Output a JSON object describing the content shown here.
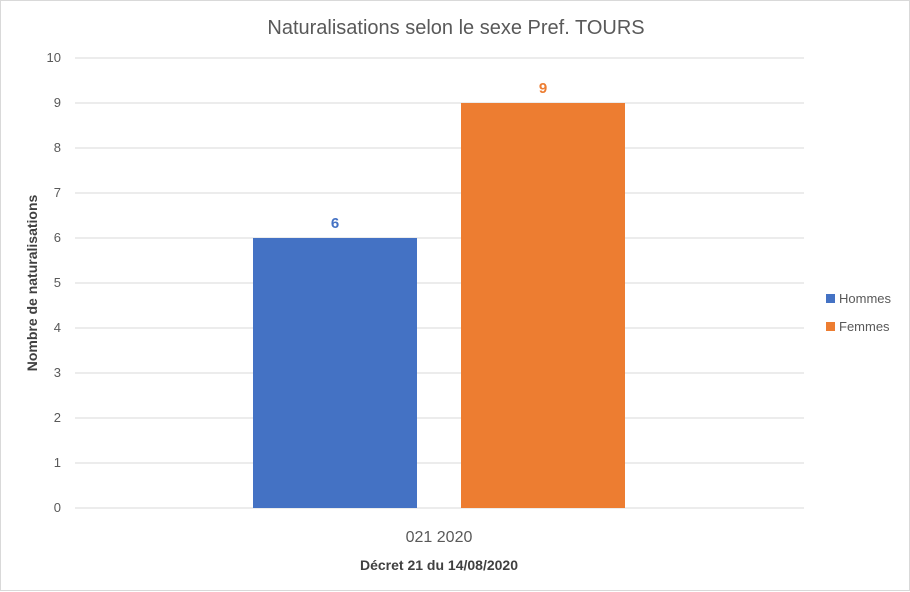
{
  "chart_data": {
    "type": "bar",
    "title": "Naturalisations selon le sexe Pref. TOURS",
    "xlabel": "Décret 21 du 14/08/2020",
    "ylabel": "Nombre de naturalisations",
    "categories": [
      "021 2020"
    ],
    "ylim": [
      0,
      10
    ],
    "yticks": [
      0,
      1,
      2,
      3,
      4,
      5,
      6,
      7,
      8,
      9,
      10
    ],
    "grid": true,
    "legend_position": "right",
    "series": [
      {
        "name": "Hommes",
        "values": [
          6
        ],
        "color": "#4472c4"
      },
      {
        "name": "Femmes",
        "values": [
          9
        ],
        "color": "#ed7d31"
      }
    ]
  }
}
